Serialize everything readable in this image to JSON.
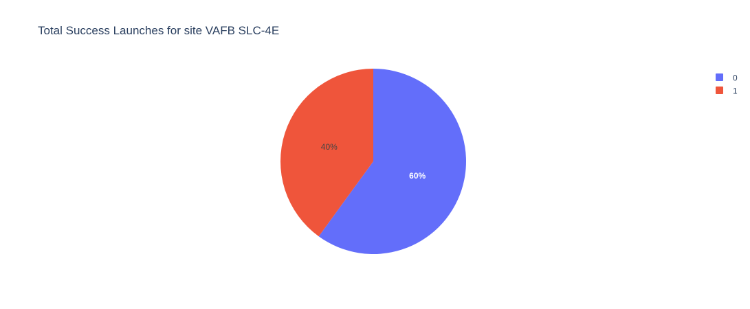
{
  "chart_data": {
    "type": "pie",
    "title": "Total Success Launches for site VAFB SLC-4E",
    "slices": [
      {
        "label": "0",
        "value": 60,
        "percent_label": "60%",
        "color": "#636efa",
        "text_color": "#ffffff"
      },
      {
        "label": "1",
        "value": 40,
        "percent_label": "40%",
        "color": "#ef553b",
        "text_color": "#444444"
      }
    ],
    "legend": {
      "placement": "top-right",
      "entries": [
        "0",
        "1"
      ]
    },
    "direction": "clockwise",
    "start_angle": "12 o'clock"
  }
}
